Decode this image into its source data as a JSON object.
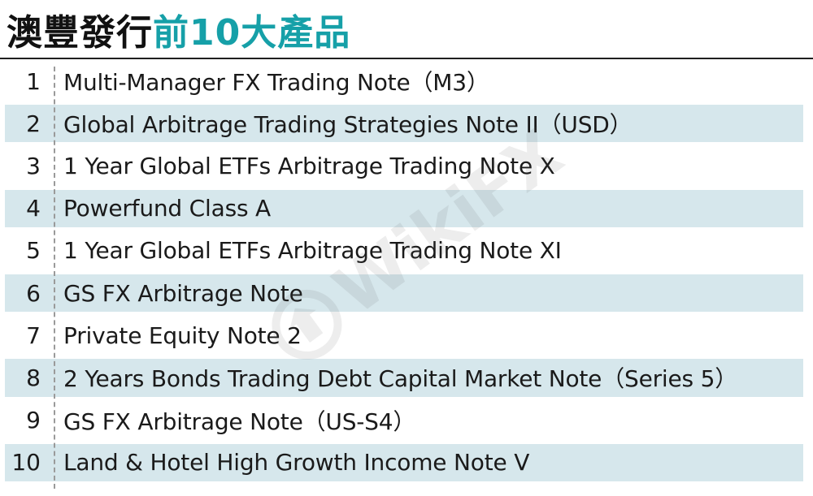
{
  "header": {
    "title_part1": "澳豐發行",
    "title_part2": "前10大產品",
    "title_color_dark": "#111111",
    "title_color_accent": "#16a0a8"
  },
  "table": {
    "row_shade_color": "#d6e7ec",
    "rows": [
      {
        "rank": "1",
        "name": "Multi-Manager FX Trading Note（M3）",
        "shaded": false
      },
      {
        "rank": "2",
        "name": "Global Arbitrage Trading Strategies Note II（USD）",
        "shaded": true
      },
      {
        "rank": "3",
        "name": "1 Year Global ETFs Arbitrage Trading Note X",
        "shaded": false
      },
      {
        "rank": "4",
        "name": "Powerfund Class A",
        "shaded": true
      },
      {
        "rank": "5",
        "name": "1 Year Global ETFs Arbitrage Trading Note XI",
        "shaded": false
      },
      {
        "rank": "6",
        "name": "GS FX Arbitrage Note",
        "shaded": true
      },
      {
        "rank": "7",
        "name": "Private Equity Note 2",
        "shaded": false
      },
      {
        "rank": "8",
        "name": "2 Years Bonds Trading Debt Capital Market Note（Series 5）",
        "shaded": true
      },
      {
        "rank": "9",
        "name": "GS FX Arbitrage Note（US-S4）",
        "shaded": false
      },
      {
        "rank": "10",
        "name": "Land & Hotel High Growth Income Note V",
        "shaded": true
      }
    ]
  },
  "watermark": {
    "text": "WikiFX",
    "icon": "wikifx-logo-icon"
  }
}
